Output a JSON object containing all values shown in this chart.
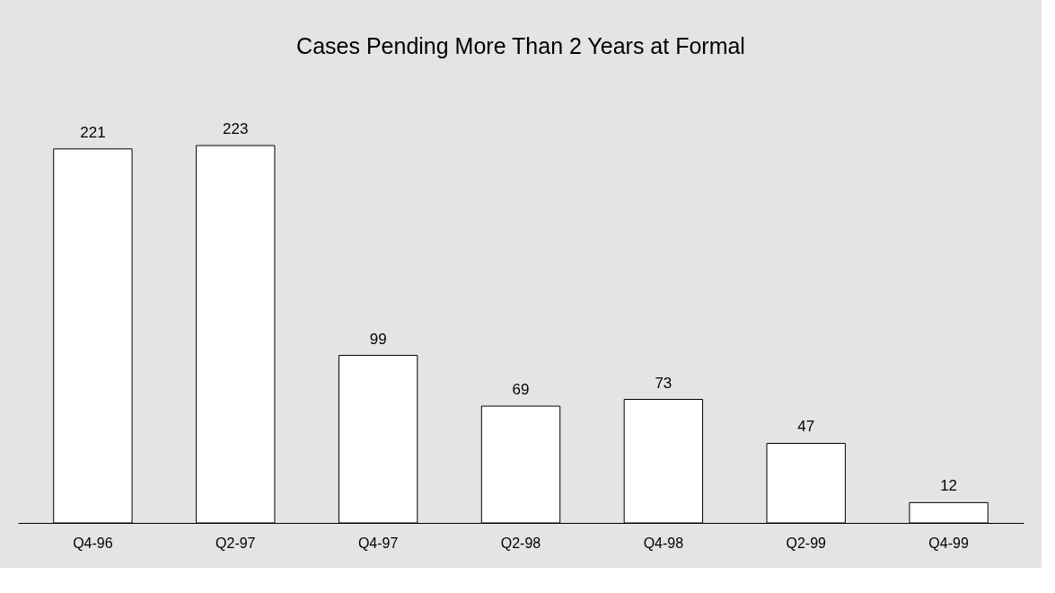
{
  "chart_data": {
    "type": "bar",
    "title": "Cases Pending More Than 2 Years at Formal",
    "categories": [
      "Q4-96",
      "Q2-97",
      "Q4-97",
      "Q2-98",
      "Q4-98",
      "Q2-99",
      "Q4-99"
    ],
    "values": [
      221,
      223,
      99,
      69,
      73,
      47,
      12
    ],
    "color": "#ffffff",
    "data_labels": true
  }
}
